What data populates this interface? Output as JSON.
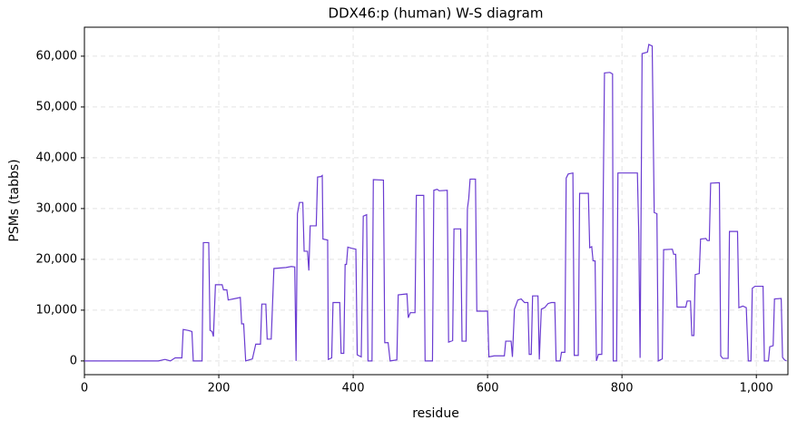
{
  "chart_data": {
    "type": "line",
    "title": "DDX46:p (human) W-S diagram",
    "xlabel": "residue",
    "ylabel": "PSMs (tabbs)",
    "x": [
      0,
      30,
      110,
      120,
      128,
      135,
      145,
      147,
      155,
      160,
      162,
      175,
      177,
      185,
      187,
      190,
      192,
      195,
      205,
      207,
      212,
      214,
      225,
      232,
      234,
      237,
      240,
      250,
      255,
      262,
      264,
      270,
      272,
      278,
      282,
      300,
      308,
      313,
      315,
      317,
      320,
      325,
      327,
      332,
      334,
      336,
      345,
      347,
      352,
      354,
      355,
      362,
      363,
      368,
      370,
      380,
      382,
      386,
      388,
      390,
      392,
      397,
      404,
      406,
      412,
      415,
      420,
      422,
      428,
      430,
      445,
      447,
      452,
      455,
      465,
      467,
      480,
      482,
      485,
      492,
      494,
      505,
      507,
      518,
      520,
      525,
      528,
      540,
      542,
      548,
      550,
      560,
      562,
      568,
      570,
      572,
      574,
      582,
      584,
      600,
      602,
      610,
      625,
      627,
      635,
      637,
      640,
      645,
      650,
      655,
      660,
      662,
      665,
      667,
      675,
      677,
      680,
      685,
      690,
      695,
      700,
      702,
      708,
      710,
      715,
      717,
      720,
      727,
      729,
      735,
      737,
      750,
      752,
      755,
      757,
      760,
      762,
      765,
      770,
      772,
      774,
      782,
      786,
      787,
      792,
      794,
      815,
      823,
      825,
      827,
      830,
      838,
      840,
      845,
      848,
      852,
      854,
      860,
      862,
      875,
      877,
      880,
      882,
      895,
      897,
      902,
      904,
      907,
      909,
      915,
      917,
      925,
      927,
      930,
      932,
      945,
      947,
      950,
      958,
      960,
      972,
      974,
      980,
      985,
      988,
      992,
      994,
      998,
      1010,
      1012,
      1018,
      1020,
      1025,
      1027,
      1037,
      1039,
      1042,
      1045
    ],
    "series": [
      {
        "name": "PSMs",
        "color": "#6a3bd1",
        "values": [
          0,
          0,
          0,
          300,
          0,
          600,
          600,
          6200,
          6000,
          5800,
          0,
          0,
          23300,
          23300,
          6000,
          5800,
          4800,
          15000,
          15000,
          14000,
          14000,
          12000,
          12300,
          12500,
          7300,
          7300,
          0,
          400,
          3300,
          3300,
          11200,
          11200,
          4300,
          4300,
          18200,
          18400,
          18600,
          18500,
          0,
          29000,
          31200,
          31200,
          21600,
          21600,
          17800,
          26600,
          26600,
          36200,
          36300,
          36500,
          24000,
          23800,
          300,
          600,
          11500,
          11500,
          1500,
          1500,
          19000,
          19000,
          22400,
          22200,
          22000,
          1200,
          800,
          28500,
          28800,
          0,
          0,
          35700,
          35600,
          3600,
          3600,
          0,
          200,
          13000,
          13200,
          8500,
          9500,
          9500,
          32600,
          32600,
          0,
          0,
          33600,
          33800,
          33500,
          33600,
          3700,
          4000,
          26000,
          26000,
          3900,
          3900,
          30000,
          32000,
          35800,
          35800,
          9800,
          9800,
          800,
          1000,
          1000,
          3900,
          3900,
          800,
          10200,
          12000,
          12200,
          11500,
          11500,
          1300,
          1300,
          12800,
          12800,
          300,
          10200,
          10500,
          11300,
          11500,
          11500,
          0,
          0,
          1700,
          1700,
          36000,
          36800,
          37000,
          1100,
          1100,
          33000,
          33000,
          22300,
          22500,
          19700,
          19700,
          0,
          1300,
          1300,
          30700,
          56700,
          56800,
          56500,
          0,
          0,
          37000,
          37000,
          37000,
          25000,
          600,
          60500,
          60800,
          62300,
          62000,
          29200,
          29000,
          0,
          400,
          21900,
          22000,
          21000,
          21000,
          10600,
          10600,
          11800,
          11800,
          5000,
          5000,
          17000,
          17200,
          24000,
          24100,
          23700,
          23700,
          35000,
          35100,
          1000,
          500,
          500,
          25500,
          25500,
          10500,
          10800,
          10500,
          0,
          0,
          14300,
          14700,
          14700,
          0,
          0,
          2800,
          3000,
          12200,
          12300,
          700,
          200,
          0
        ]
      }
    ],
    "xlim": [
      0,
      1047
    ],
    "ylim": [
      -2700,
      65700
    ],
    "xticks": [
      0,
      200,
      400,
      600,
      800,
      {
        "value": 1000,
        "label": "1,000"
      }
    ],
    "yticks": [
      0,
      {
        "value": 10000,
        "label": "10,000"
      },
      {
        "value": 20000,
        "label": "20,000"
      },
      {
        "value": 30000,
        "label": "30,000"
      },
      {
        "value": 40000,
        "label": "40,000"
      },
      {
        "value": 50000,
        "label": "50,000"
      },
      {
        "value": 60000,
        "label": "60,000"
      }
    ],
    "grid": true
  }
}
